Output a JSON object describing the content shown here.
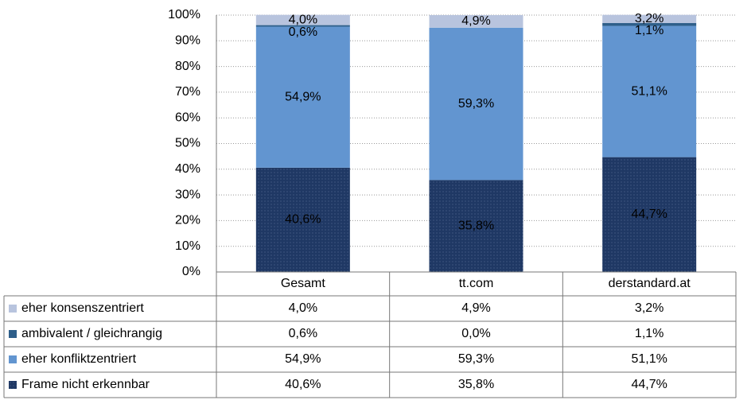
{
  "chart_data": {
    "type": "stacked_bar",
    "categories": [
      "Gesamt",
      "tt.com",
      "derstandard.at"
    ],
    "series": [
      {
        "name": "Frame nicht erkennbar",
        "color": "#1f3864",
        "values": [
          40.6,
          35.8,
          44.7
        ],
        "value_labels": [
          "40,6%",
          "35,8%",
          "44,7%"
        ]
      },
      {
        "name": "eher konfliktzentriert",
        "color": "#6295d0",
        "values": [
          54.9,
          59.3,
          51.1
        ],
        "value_labels": [
          "54,9%",
          "59,3%",
          "51,1%"
        ]
      },
      {
        "name": "ambivalent / gleichrangig",
        "color": "#2e5f8a",
        "values": [
          0.6,
          0.0,
          1.1
        ],
        "value_labels": [
          "0,6%",
          "0,0%",
          "1,1%"
        ]
      },
      {
        "name": "eher konsenszentriert",
        "color": "#b8c4de",
        "values": [
          4.0,
          4.9,
          3.2
        ],
        "value_labels": [
          "4,0%",
          "4,9%",
          "3,2%"
        ]
      }
    ],
    "ylim": [
      0,
      100
    ],
    "yticks": [
      {
        "value": 0,
        "label": "0%"
      },
      {
        "value": 10,
        "label": "10%"
      },
      {
        "value": 20,
        "label": "20%"
      },
      {
        "value": 30,
        "label": "30%"
      },
      {
        "value": 40,
        "label": "40%"
      },
      {
        "value": 50,
        "label": "50%"
      },
      {
        "value": 60,
        "label": "60%"
      },
      {
        "value": 70,
        "label": "70%"
      },
      {
        "value": 80,
        "label": "80%"
      },
      {
        "value": 90,
        "label": "90%"
      },
      {
        "value": 100,
        "label": "100%"
      }
    ],
    "grid": true
  }
}
